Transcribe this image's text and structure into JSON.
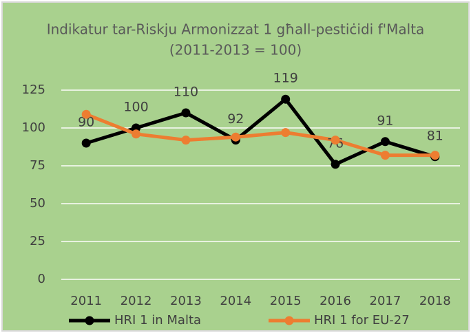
{
  "chart_data": {
    "type": "line",
    "title": "Indikatur tar-Riskju Armonizzat 1 għall-pestiċidi f'Malta",
    "subtitle": "(2011-2013 = 100)",
    "categories": [
      "2011",
      "2012",
      "2013",
      "2014",
      "2015",
      "2016",
      "2017",
      "2018"
    ],
    "series": [
      {
        "name": "HRI 1 in Malta",
        "color": "#000000",
        "values": [
          90,
          100,
          110,
          92,
          119,
          76,
          91,
          81
        ],
        "data_labels": true
      },
      {
        "name": "HRI 1 for EU-27",
        "color": "#ed7d31",
        "values": [
          109,
          96,
          92,
          94,
          97,
          92,
          82,
          82
        ],
        "data_labels": false
      }
    ],
    "ylim": [
      0,
      125
    ],
    "yticks": [
      0,
      25,
      50,
      75,
      100,
      125
    ],
    "grid": true,
    "legend": "bottom"
  }
}
